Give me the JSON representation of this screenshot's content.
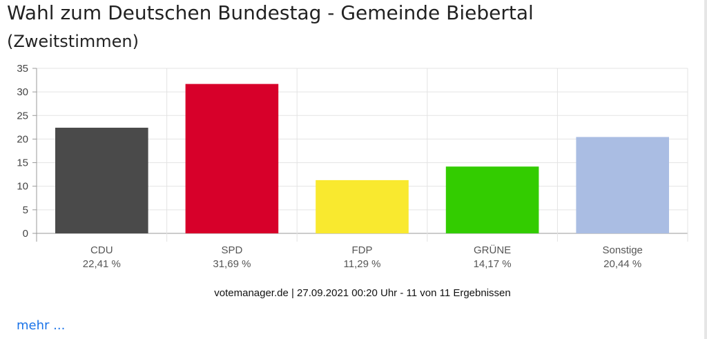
{
  "header": {
    "title": "Wahl zum Deutschen Bundestag - Gemeinde Biebertal",
    "subtitle": "(Zweitstimmen)"
  },
  "chart_data": {
    "type": "bar",
    "title": "Wahl zum Deutschen Bundestag - Gemeinde Biebertal",
    "subtitle": "(Zweitstimmen)",
    "categories": [
      "CDU",
      "SPD",
      "FDP",
      "GRÜNE",
      "Sonstige"
    ],
    "values": [
      22.41,
      31.69,
      11.29,
      14.17,
      20.44
    ],
    "value_labels": [
      "22,41 %",
      "31,69 %",
      "11,29 %",
      "14,17 %",
      "20,44 %"
    ],
    "colors": [
      "#4a4a4a",
      "#d7002a",
      "#f9e92f",
      "#33cc00",
      "#aabde3"
    ],
    "ylim": [
      0,
      35
    ],
    "yticks": [
      "0",
      "5",
      "10",
      "15",
      "20",
      "25",
      "30",
      "35"
    ],
    "grid": true
  },
  "footer": {
    "source": "votemanager.de | 27.09.2021 00:20 Uhr - 11 von 11 Ergebnissen",
    "more_link": "mehr ..."
  }
}
